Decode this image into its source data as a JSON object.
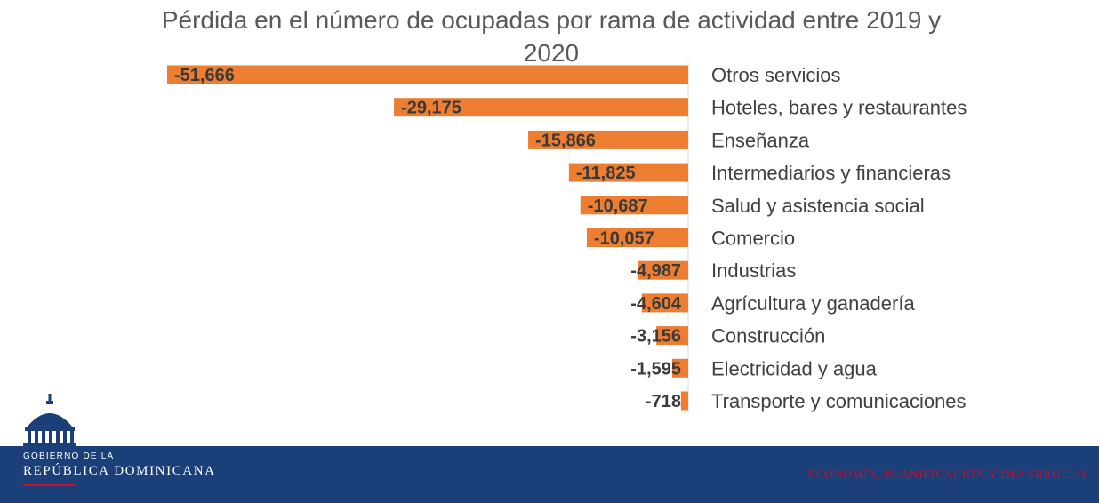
{
  "chart_data": {
    "type": "bar",
    "orientation": "horizontal",
    "title": "Pérdida en el número de ocupadas por rama de actividad entre 2019 y 2020",
    "categories": [
      "Otros servicios",
      "Hoteles, bares y restaurantes",
      "Enseñanza",
      "Intermediarios y financieras",
      "Salud y asistencia social",
      "Comercio",
      "Industrias",
      "Agrícultura y ganadería",
      "Construcción",
      "Electricidad y agua",
      "Transporte y comunicaciones"
    ],
    "values": [
      -51666,
      -29175,
      -15866,
      -11825,
      -10687,
      -10057,
      -4987,
      -4604,
      -3156,
      -1595,
      -718
    ],
    "value_labels": [
      "-51,666",
      "-29,175",
      "-15,866",
      "-11,825",
      "-10,687",
      "-10,057",
      "-4,987",
      "-4,604",
      "-3,156",
      "-1,595",
      "-718"
    ],
    "xlim": [
      -51666,
      0
    ],
    "bar_color": "#ed7d31",
    "grid": false,
    "legend": "none"
  },
  "footer": {
    "gov_line1": "GOBIERNO DE LA",
    "gov_line2": "REPÚBLICA DOMINICANA",
    "ministry": "ECONOMÍA, PLANIFICACIÓN Y DESARROLLO",
    "background": "#1b3f78",
    "accent": "#c8102e"
  },
  "logo": {
    "icon": "government-dome-icon"
  }
}
